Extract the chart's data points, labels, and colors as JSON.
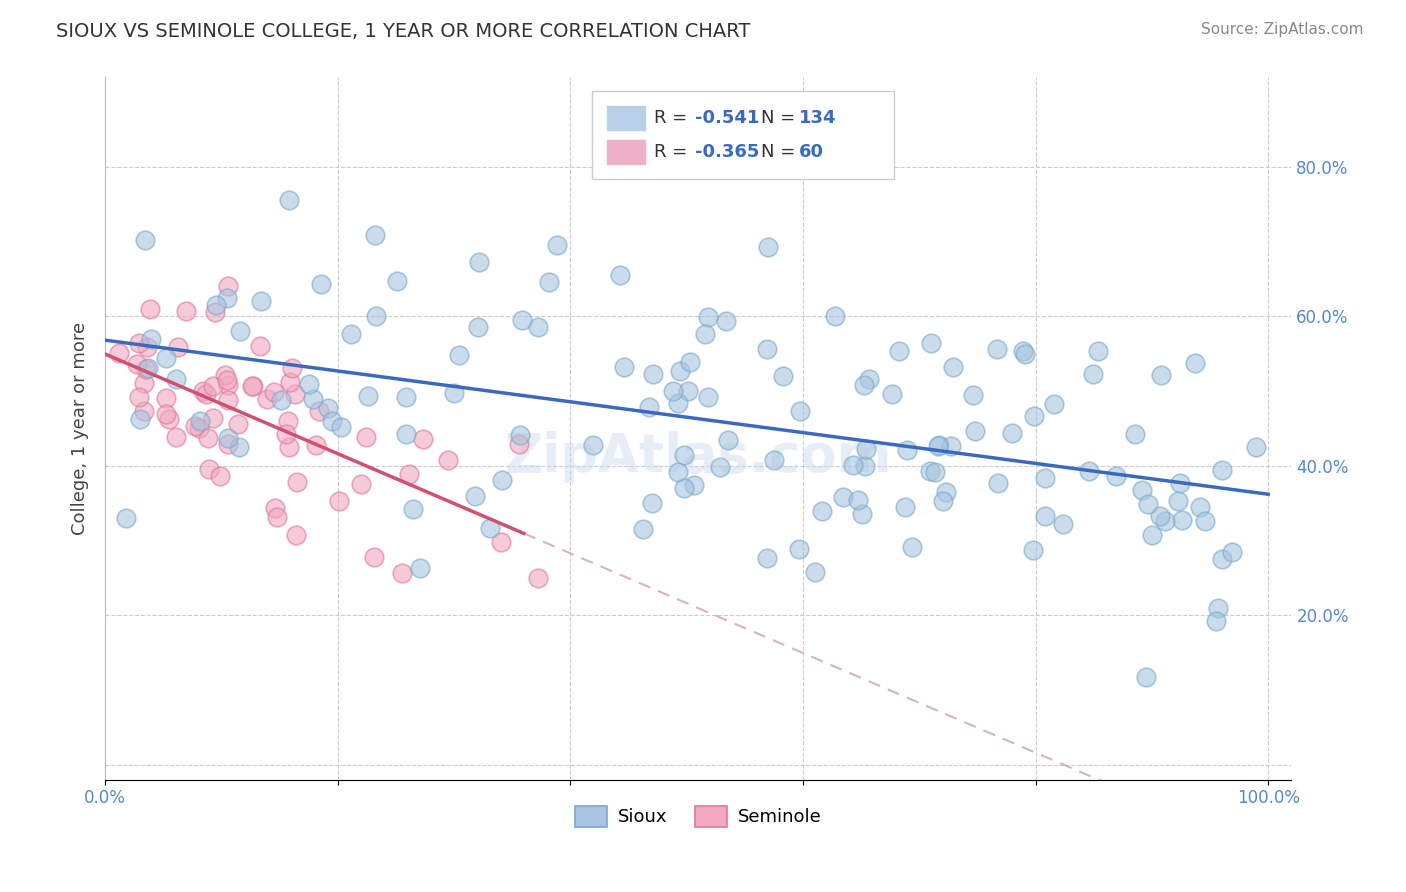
{
  "title": "SIOUX VS SEMINOLE COLLEGE, 1 YEAR OR MORE CORRELATION CHART",
  "source": "Source: ZipAtlas.com",
  "ylabel": "College, 1 year or more",
  "sioux_R": -0.541,
  "sioux_N": 134,
  "seminole_R": -0.365,
  "seminole_N": 60,
  "sioux_color": "#a8c4e0",
  "sioux_edge_color": "#7aaac8",
  "seminole_color": "#f0a8c0",
  "seminole_edge_color": "#e07898",
  "sioux_line_color": "#3a6abf",
  "seminole_line_color": "#d05070",
  "dashed_line_color": "#d0a0b0",
  "background_color": "#ffffff",
  "grid_color": "#cccccc",
  "legend_R_color": "#3a6abf",
  "legend_box_blue": "#b8d0e8",
  "legend_box_pink": "#f0b0c8",
  "title_color": "#333333",
  "source_color": "#888888",
  "tick_color": "#5588cc",
  "ylabel_color": "#444444",
  "sioux_line_intercept": 0.57,
  "sioux_line_slope": -0.195,
  "seminole_line_intercept": 0.545,
  "seminole_line_slope": -0.62,
  "seminole_line_xmax": 0.36,
  "xlim": [
    0.0,
    1.02
  ],
  "ylim": [
    -0.02,
    0.92
  ],
  "x_ticks": [
    0.0,
    0.2,
    0.4,
    0.6,
    0.8,
    1.0
  ],
  "y_ticks": [
    0.0,
    0.2,
    0.4,
    0.6,
    0.8
  ],
  "scatter_size": 180,
  "scatter_alpha": 0.6,
  "scatter_linewidth": 1.2
}
